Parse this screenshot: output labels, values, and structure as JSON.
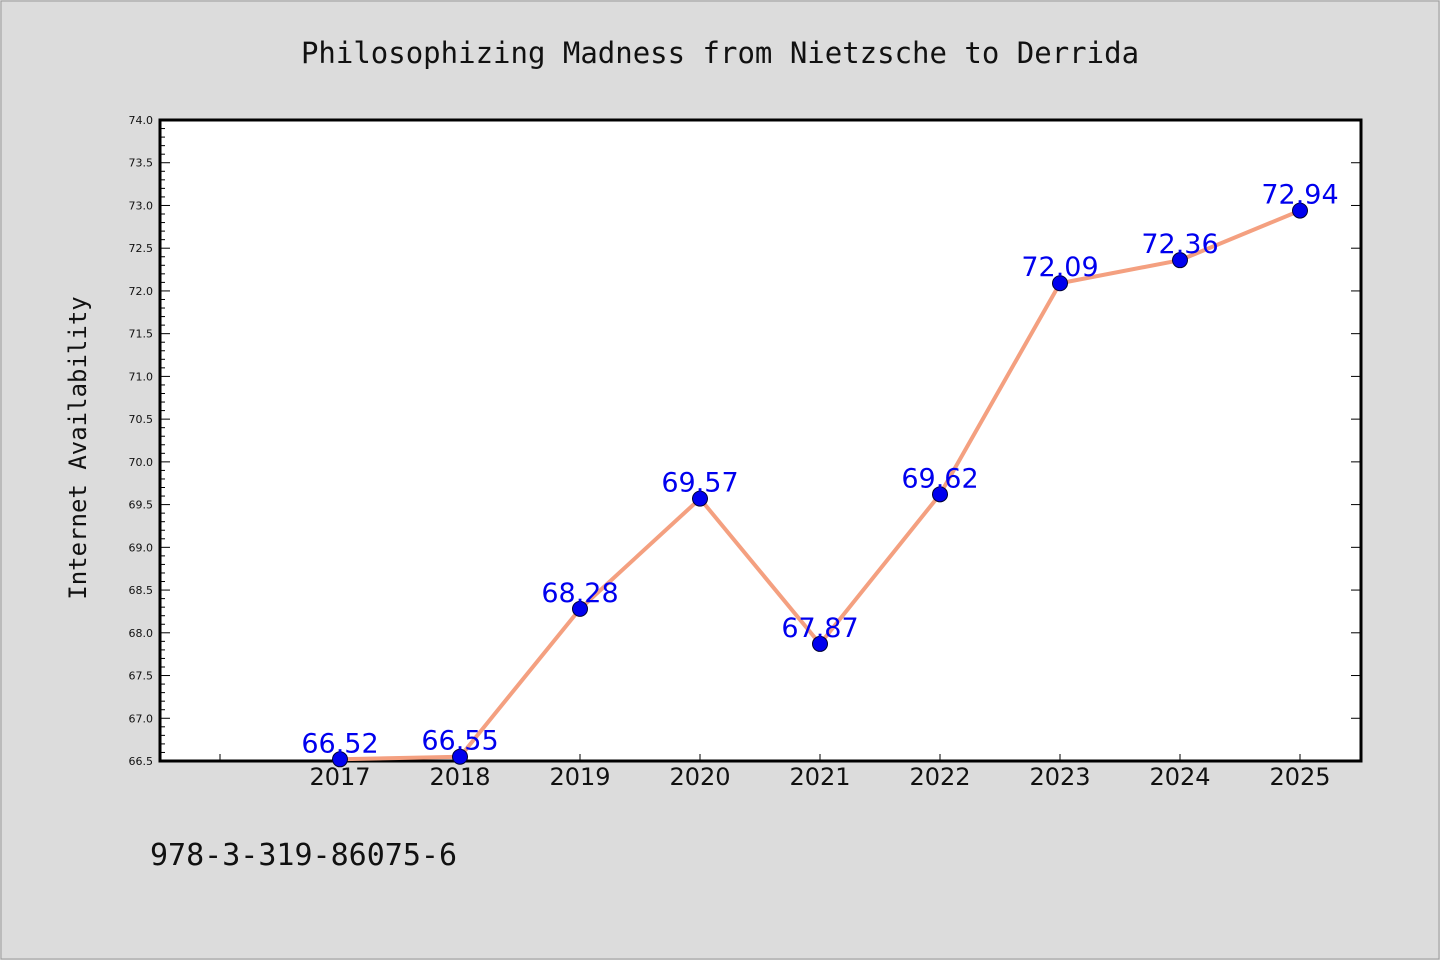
{
  "chart_data": {
    "type": "line",
    "title": "Philosophizing Madness from Nietzsche to Derrida",
    "xlabel": "",
    "ylabel": "Internet Availability",
    "x": [
      "2017",
      "2018",
      "2019",
      "2020",
      "2021",
      "2022",
      "2023",
      "2024",
      "2025"
    ],
    "series": [
      {
        "values": [
          66.52,
          66.55,
          68.28,
          69.57,
          67.87,
          69.62,
          72.09,
          72.36,
          72.94
        ],
        "labels": [
          "66.52",
          "66.55",
          "68.28",
          "69.57",
          "67.87",
          "69.62",
          "72.09",
          "72.36",
          "72.94"
        ]
      }
    ],
    "ylim": [
      66.5,
      74.0
    ],
    "yticks": [
      "66.5",
      "67.0",
      "67.5",
      "68.0",
      "68.5",
      "69.0",
      "69.5",
      "70.0",
      "70.5",
      "71.0",
      "71.5",
      "72.0",
      "72.5",
      "73.0",
      "73.5",
      "74.0"
    ],
    "grid": false,
    "legend": "none"
  },
  "footer": {
    "isbn": "978-3-319-86075-6"
  },
  "colors": {
    "background": "#dcdcdc",
    "plot_area": "#ffffff",
    "line": "#f4a080",
    "marker": "#0000ee",
    "data_label": "#0000ee",
    "text": "#111111"
  }
}
